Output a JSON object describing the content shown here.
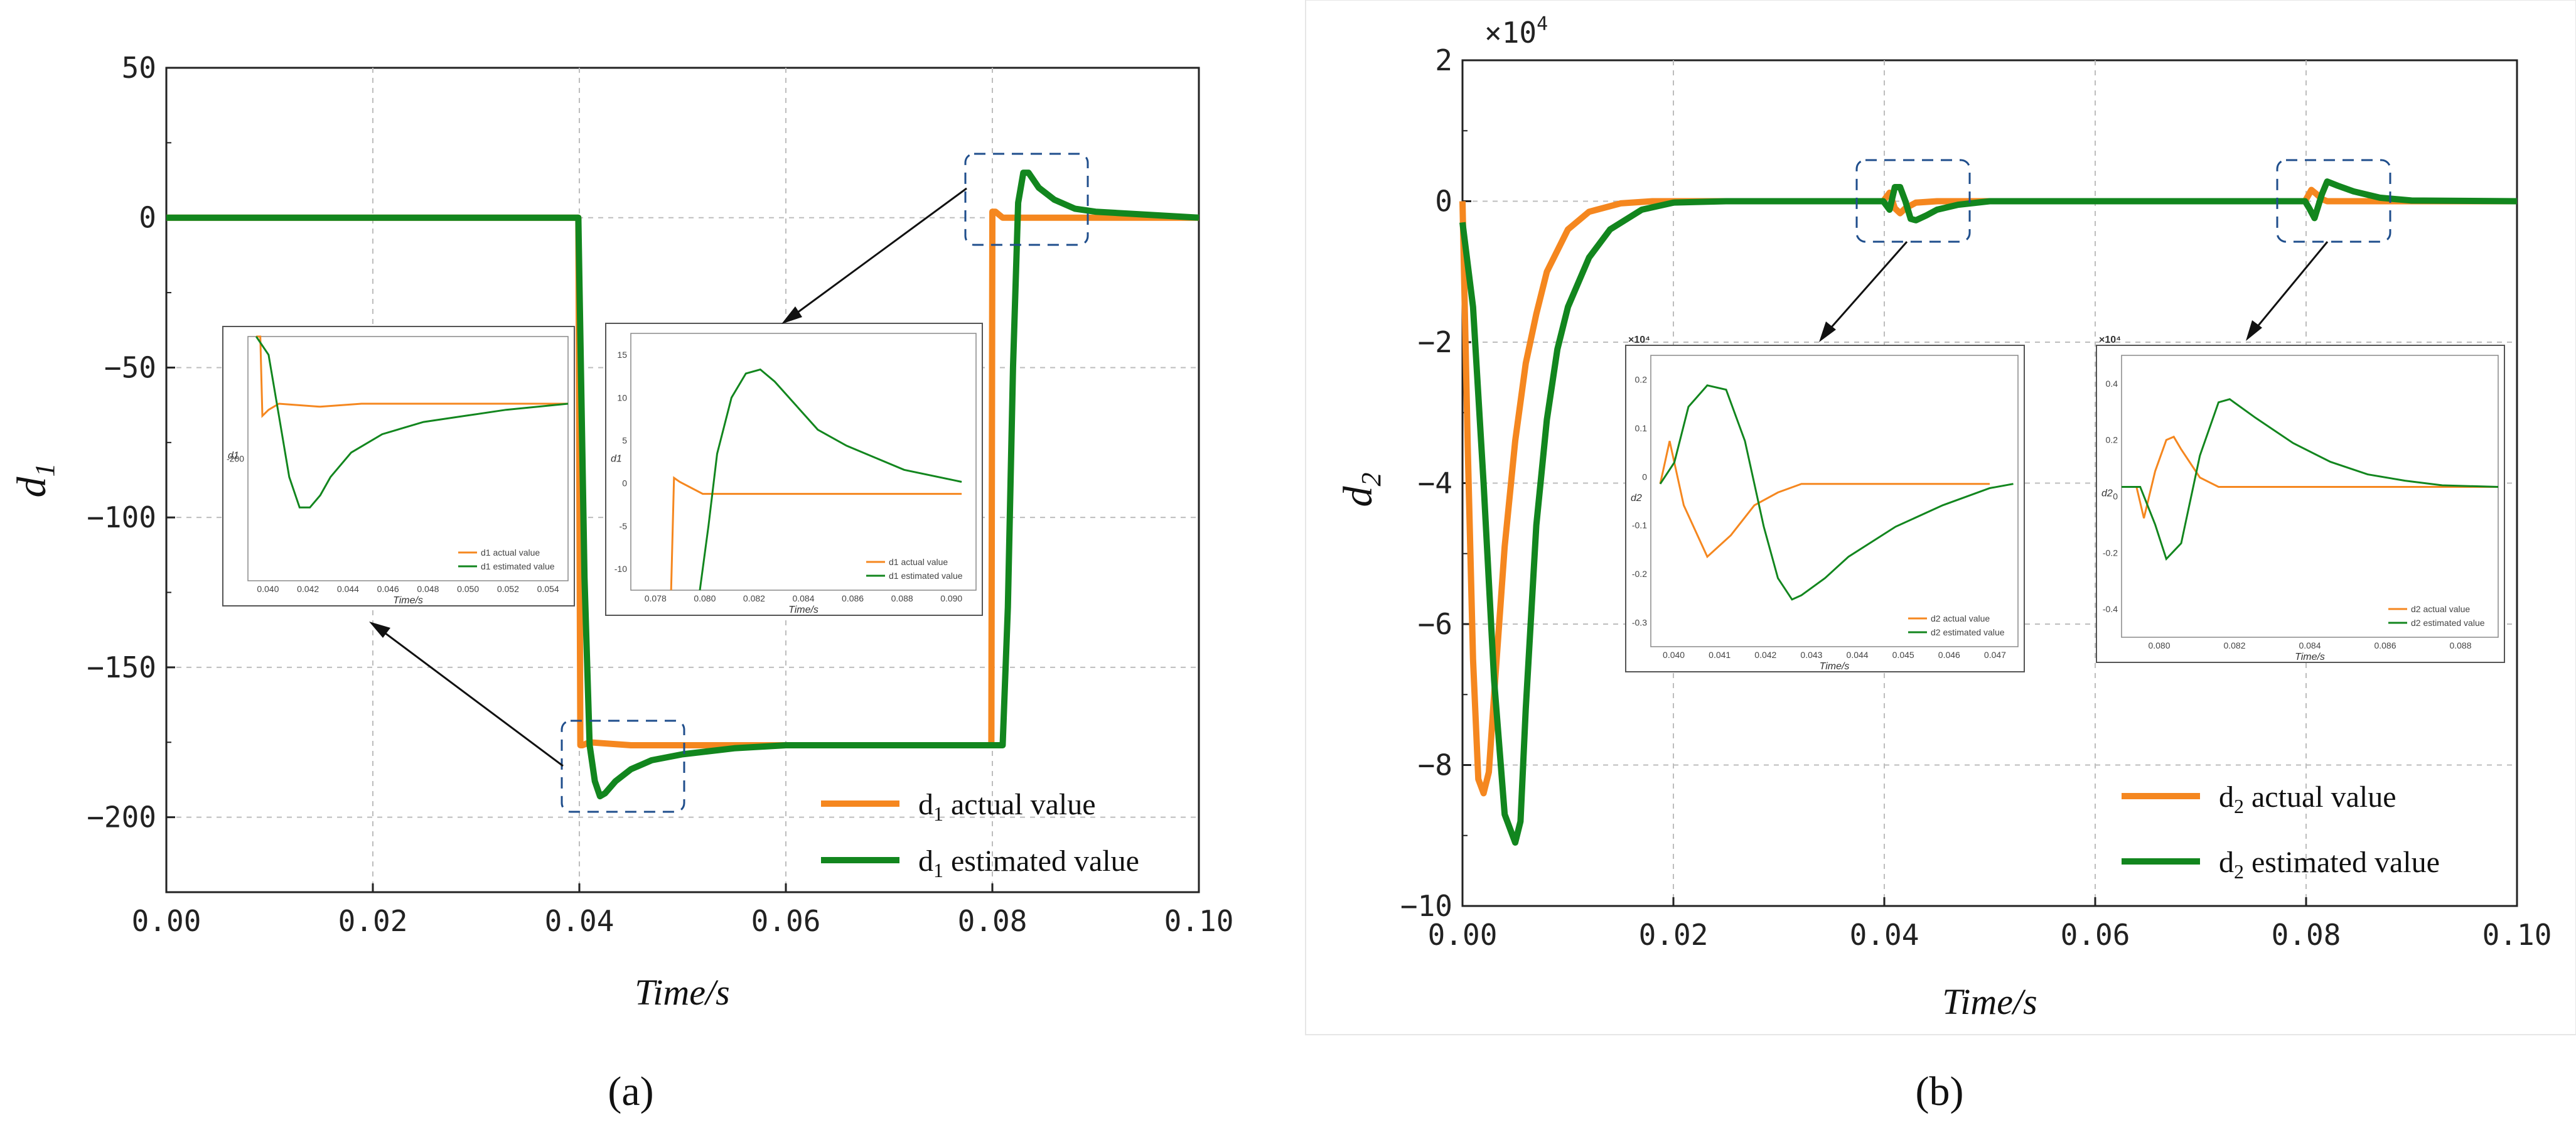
{
  "colors": {
    "actual": "#F5871F",
    "estimated": "#12861E",
    "box": "#1F4E8C",
    "grid": "#BDBDBD"
  },
  "panel_labels": [
    "(a)",
    "(b)"
  ],
  "chart_data": [
    {
      "type": "line",
      "id": "a",
      "xlabel": "Time/s",
      "ylabel": "d1",
      "xlim": [
        0,
        0.1
      ],
      "ylim": [
        -225,
        50
      ],
      "xticks": [
        0,
        0.02,
        0.04,
        0.06,
        0.08,
        0.1
      ],
      "xtick_labels": [
        "0.00",
        "0.02",
        "0.04",
        "0.06",
        "0.08",
        "0.10"
      ],
      "yticks": [
        50,
        0,
        -50,
        -100,
        -150,
        -200
      ],
      "ytick_labels": [
        "50",
        "0",
        "−50",
        "−100",
        "−150",
        "−200"
      ],
      "legend": [
        "d1 actual value",
        "d1 estimated value"
      ],
      "legend_position": "bottom-right",
      "series": [
        {
          "name": "d1 actual value",
          "x": [
            0,
            0.0399,
            0.0401,
            0.0403,
            0.041,
            0.045,
            0.06,
            0.0799,
            0.08,
            0.0803,
            0.081,
            0.083,
            0.09,
            0.1
          ],
          "y": [
            0,
            0,
            -176,
            -176,
            -175,
            -176,
            -176,
            -176,
            2,
            2,
            0,
            0,
            0,
            0
          ]
        },
        {
          "name": "d1 estimated value",
          "x": [
            0,
            0.0399,
            0.04,
            0.0405,
            0.041,
            0.0415,
            0.042,
            0.0425,
            0.0435,
            0.045,
            0.047,
            0.05,
            0.055,
            0.06,
            0.07,
            0.0799,
            0.08,
            0.0805,
            0.081,
            0.0815,
            0.082,
            0.0825,
            0.083,
            0.0835,
            0.0845,
            0.086,
            0.088,
            0.09,
            0.095,
            0.1
          ],
          "y": [
            0,
            0,
            -20,
            -120,
            -176,
            -188,
            -193,
            -192,
            -188,
            -184,
            -181,
            -179,
            -177,
            -176,
            -176,
            -176,
            -176,
            -176,
            -176,
            -130,
            -50,
            5,
            15,
            15,
            10,
            6,
            3,
            2,
            1,
            0
          ]
        }
      ],
      "insets": [
        {
          "legend": [
            "d1 actual value",
            "d1 estimated value"
          ],
          "ylabel": "d1",
          "xlabel": "Time/s",
          "xtick_labels": [
            "0.040",
            "0.042",
            "0.044",
            "0.046",
            "0.048",
            "0.050",
            "0.052",
            "0.054"
          ],
          "ytick_labels": [
            "-200"
          ],
          "xlim": [
            0.0395,
            0.055
          ],
          "ylim": [
            -205,
            -165
          ],
          "series": [
            {
              "name": "actual",
              "x": [
                0.0399,
                0.0401,
                0.0402,
                0.0405,
                0.041,
                0.043,
                0.045,
                0.055
              ],
              "y": [
                -165,
                -165,
                -178,
                -177,
                -176,
                -176.5,
                -176,
                -176
              ]
            },
            {
              "name": "estimated",
              "x": [
                0.0399,
                0.0405,
                0.041,
                0.0415,
                0.042,
                0.0425,
                0.043,
                0.0435,
                0.0445,
                0.046,
                0.048,
                0.05,
                0.052,
                0.055
              ],
              "y": [
                -165,
                -168,
                -178,
                -188,
                -193,
                -193,
                -191,
                -188,
                -184,
                -181,
                -179,
                -178,
                -177,
                -176
              ]
            }
          ]
        },
        {
          "legend": [
            "d1 actual value",
            "d1 estimated value"
          ],
          "ylabel": "d1",
          "xlabel": "Time/s",
          "xtick_labels": [
            "0.078",
            "0.080",
            "0.082",
            "0.084",
            "0.086",
            "0.088",
            "0.090"
          ],
          "ytick_labels": [
            "15",
            "10",
            "5",
            "0",
            "-5",
            "-10"
          ],
          "xlim": [
            0.0785,
            0.0905
          ],
          "ylim": [
            -12,
            20
          ],
          "series": [
            {
              "name": "actual",
              "x": [
                0.0799,
                0.08,
                0.0802,
                0.081,
                0.082,
                0.09
              ],
              "y": [
                -12,
                2,
                1.5,
                0,
                0,
                0
              ]
            },
            {
              "name": "estimated",
              "x": [
                0.0809,
                0.0812,
                0.0815,
                0.082,
                0.0825,
                0.083,
                0.0835,
                0.084,
                0.085,
                0.086,
                0.087,
                0.088,
                0.09
              ],
              "y": [
                -12,
                -4,
                5,
                12,
                15,
                15.5,
                14,
                12,
                8,
                6,
                4.5,
                3,
                1.5
              ]
            }
          ]
        }
      ]
    },
    {
      "type": "line",
      "id": "b",
      "xlabel": "Time/s",
      "ylabel": "d2",
      "scale_label": "×10",
      "scale_exp": "4",
      "xlim": [
        0,
        0.1
      ],
      "ylim": [
        -10,
        2
      ],
      "xticks": [
        0,
        0.02,
        0.04,
        0.06,
        0.08,
        0.1
      ],
      "xtick_labels": [
        "0.00",
        "0.02",
        "0.04",
        "0.06",
        "0.08",
        "0.10"
      ],
      "yticks": [
        2,
        0,
        -2,
        -4,
        -6,
        -8,
        -10
      ],
      "ytick_labels": [
        "2",
        "0",
        "−2",
        "−4",
        "−6",
        "−8",
        "−10"
      ],
      "legend": [
        "d2 actual value",
        "d2 estimated value"
      ],
      "legend_position": "bottom-right",
      "series": [
        {
          "name": "d2 actual value",
          "x": [
            0,
            0.0005,
            0.001,
            0.0015,
            0.002,
            0.0025,
            0.003,
            0.004,
            0.005,
            0.006,
            0.007,
            0.008,
            0.01,
            0.012,
            0.015,
            0.018,
            0.02,
            0.0399,
            0.0405,
            0.041,
            0.0415,
            0.042,
            0.043,
            0.045,
            0.05,
            0.0799,
            0.0805,
            0.081,
            0.0815,
            0.082,
            0.083,
            0.085,
            0.1
          ],
          "y": [
            0,
            -3.5,
            -6.5,
            -8.2,
            -8.4,
            -8.1,
            -7.0,
            -4.9,
            -3.4,
            -2.3,
            -1.6,
            -1.0,
            -0.4,
            -0.15,
            -0.03,
            0,
            0,
            0,
            0.12,
            -0.1,
            -0.17,
            -0.1,
            -0.02,
            0,
            0,
            0,
            0.16,
            0.1,
            0.03,
            0,
            0,
            0,
            0
          ]
        },
        {
          "name": "d2 estimated value",
          "x": [
            0,
            0.001,
            0.002,
            0.003,
            0.004,
            0.005,
            0.0055,
            0.006,
            0.007,
            0.008,
            0.009,
            0.01,
            0.012,
            0.014,
            0.017,
            0.02,
            0.025,
            0.0399,
            0.0405,
            0.041,
            0.0415,
            0.042,
            0.0425,
            0.043,
            0.044,
            0.045,
            0.047,
            0.05,
            0.0799,
            0.0803,
            0.0808,
            0.0815,
            0.082,
            0.083,
            0.0845,
            0.087,
            0.09,
            0.1
          ],
          "y": [
            -0.3,
            -1.5,
            -4.0,
            -6.8,
            -8.7,
            -9.1,
            -8.8,
            -7.2,
            -4.6,
            -3.1,
            -2.1,
            -1.5,
            -0.8,
            -0.4,
            -0.12,
            -0.02,
            0,
            0,
            -0.12,
            0.2,
            0.2,
            0,
            -0.25,
            -0.27,
            -0.2,
            -0.12,
            -0.05,
            0,
            0,
            -0.1,
            -0.24,
            0.1,
            0.28,
            0.22,
            0.14,
            0.05,
            0.01,
            0
          ]
        }
      ],
      "insets": [
        {
          "legend": [
            "d2 actual value",
            "d2 estimated value"
          ],
          "ylabel": "d2",
          "xlabel": "Time/s",
          "scale_label": "×10⁴",
          "xtick_labels": [
            "0.040",
            "0.041",
            "0.042",
            "0.043",
            "0.044",
            "0.045",
            "0.046",
            "0.047"
          ],
          "ytick_labels": [
            "0.2",
            "0.1",
            "0",
            "-0.1",
            "-0.2",
            "-0.3"
          ],
          "xlim": [
            0.0398,
            0.0476
          ],
          "ylim": [
            -0.38,
            0.3
          ],
          "series": [
            {
              "name": "actual",
              "x": [
                0.04,
                0.0402,
                0.0405,
                0.041,
                0.0415,
                0.042,
                0.0425,
                0.043,
                0.0435,
                0.047
              ],
              "y": [
                0,
                0.1,
                -0.05,
                -0.17,
                -0.12,
                -0.05,
                -0.02,
                0,
                0,
                0
              ]
            },
            {
              "name": "estimated",
              "x": [
                0.04,
                0.0403,
                0.0406,
                0.041,
                0.0414,
                0.0418,
                0.042,
                0.0422,
                0.0425,
                0.0428,
                0.043,
                0.0435,
                0.044,
                0.045,
                0.046,
                0.047,
                0.0475
              ],
              "y": [
                0,
                0.05,
                0.18,
                0.23,
                0.22,
                0.1,
                0,
                -0.1,
                -0.22,
                -0.27,
                -0.26,
                -0.22,
                -0.17,
                -0.1,
                -0.05,
                -0.01,
                0
              ]
            }
          ]
        },
        {
          "legend": [
            "d2 actual value",
            "d2 estimated value"
          ],
          "ylabel": "d2",
          "xlabel": "Time/s",
          "scale_label": "×10⁴",
          "xtick_labels": [
            "0.080",
            "0.082",
            "0.084",
            "0.086",
            "0.088"
          ],
          "ytick_labels": [
            "0.4",
            "0.2",
            "0",
            "-0.2",
            "-0.4"
          ],
          "xlim": [
            0.0794,
            0.0895
          ],
          "ylim": [
            -0.48,
            0.42
          ],
          "series": [
            {
              "name": "actual",
              "x": [
                0.0794,
                0.0798,
                0.08,
                0.0803,
                0.0806,
                0.0808,
                0.081,
                0.0815,
                0.082,
                0.0895
              ],
              "y": [
                0,
                0,
                -0.1,
                0.05,
                0.15,
                0.16,
                0.12,
                0.03,
                0,
                0
              ]
            },
            {
              "name": "estimated",
              "x": [
                0.0794,
                0.0799,
                0.0803,
                0.0806,
                0.081,
                0.0815,
                0.082,
                0.0823,
                0.083,
                0.084,
                0.085,
                0.086,
                0.087,
                0.088,
                0.0895
              ],
              "y": [
                0,
                0,
                -0.12,
                -0.23,
                -0.18,
                0.1,
                0.27,
                0.28,
                0.22,
                0.14,
                0.08,
                0.04,
                0.02,
                0.005,
                0
              ]
            }
          ]
        }
      ]
    }
  ]
}
